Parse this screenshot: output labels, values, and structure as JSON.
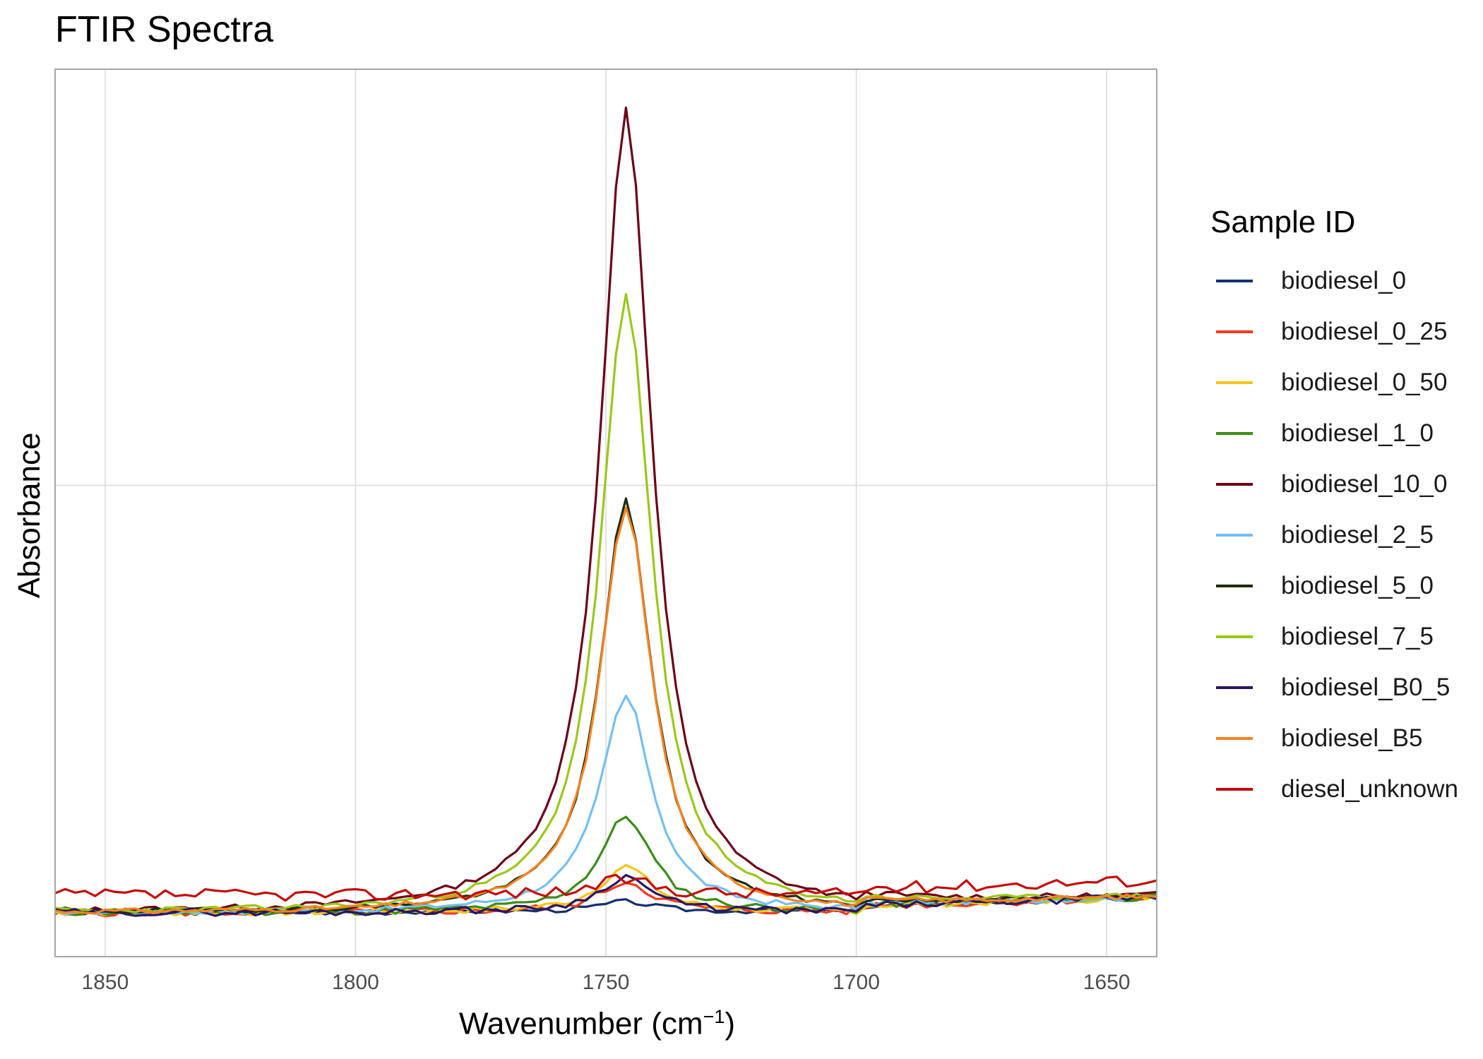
{
  "chart_data": {
    "type": "line",
    "title": "FTIR Spectra",
    "xlabel": "Wavenumber (cm⁻¹)",
    "xlabel_base": "Wavenumber (cm",
    "xlabel_sup": "−1",
    "xlabel_close": ")",
    "ylabel": "Absorbance",
    "x_reversed": true,
    "xlim": [
      1860,
      1640
    ],
    "ylim": [
      -0.09,
      1.68
    ],
    "x_ticks": [
      1850,
      1800,
      1750,
      1700,
      1650
    ],
    "x_tick_labels": [
      "1850",
      "1800",
      "1750",
      "1700",
      "1650"
    ],
    "y_gridlines": [
      0.85
    ],
    "y_tick_labels": [],
    "grid": true,
    "legend": {
      "title": "Sample ID",
      "position": "right"
    },
    "series": [
      {
        "name": "biodiesel_0",
        "color": "#14306b",
        "peak": 0.02,
        "noise": 0.005,
        "offset": 0.0,
        "seed": 3
      },
      {
        "name": "biodiesel_0_25",
        "color": "#f03a1e",
        "peak": 0.06,
        "noise": 0.008,
        "offset": 0.0,
        "seed": 5
      },
      {
        "name": "biodiesel_0_50",
        "color": "#f5c518",
        "peak": 0.09,
        "noise": 0.007,
        "offset": 0.0,
        "seed": 7
      },
      {
        "name": "biodiesel_1_0",
        "color": "#3a8c18",
        "peak": 0.19,
        "noise": 0.007,
        "offset": 0.0,
        "seed": 11
      },
      {
        "name": "biodiesel_10_0",
        "color": "#6b0018",
        "peak": 1.6,
        "noise": 0.006,
        "offset": 0.0,
        "seed": 13
      },
      {
        "name": "biodiesel_2_5",
        "color": "#74bff0",
        "peak": 0.43,
        "noise": 0.006,
        "offset": 0.0,
        "seed": 17
      },
      {
        "name": "biodiesel_5_0",
        "color": "#1d2c0c",
        "peak": 0.82,
        "noise": 0.005,
        "offset": 0.0,
        "seed": 19
      },
      {
        "name": "biodiesel_7_5",
        "color": "#9ac71a",
        "peak": 1.23,
        "noise": 0.006,
        "offset": 0.0,
        "seed": 23
      },
      {
        "name": "biodiesel_B0_5",
        "color": "#2b1660",
        "peak": 0.07,
        "noise": 0.007,
        "offset": 0.0,
        "seed": 29
      },
      {
        "name": "biodiesel_B5",
        "color": "#f5841f",
        "peak": 0.81,
        "noise": 0.005,
        "offset": 0.0,
        "seed": 31
      },
      {
        "name": "diesel_unknown",
        "color": "#c40a0a",
        "peak": 0.03,
        "noise": 0.012,
        "offset": 0.035,
        "seed": 37
      }
    ]
  }
}
